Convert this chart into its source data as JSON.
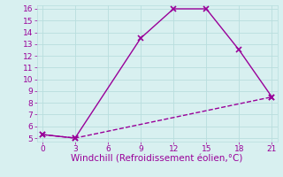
{
  "line1_x": [
    0,
    3,
    9,
    12,
    15,
    18,
    21
  ],
  "line1_y": [
    5.3,
    5.0,
    13.5,
    16.0,
    16.0,
    12.5,
    8.5
  ],
  "line2_x": [
    0,
    3,
    21
  ],
  "line2_y": [
    5.3,
    5.0,
    8.5
  ],
  "line_color": "#990099",
  "line1_style": "-",
  "line2_style": "--",
  "marker": "x",
  "marker_size": 4,
  "marker_lw": 1.2,
  "xlabel": "Windchill (Refroidissement éolien,°C)",
  "xlabel_color": "#990099",
  "bg_color": "#d8f0f0",
  "grid_color": "#b8dede",
  "xlim": [
    -0.5,
    21.5
  ],
  "ylim": [
    4.7,
    16.3
  ],
  "xticks": [
    0,
    3,
    6,
    9,
    12,
    15,
    18,
    21
  ],
  "yticks": [
    5,
    6,
    7,
    8,
    9,
    10,
    11,
    12,
    13,
    14,
    15,
    16
  ],
  "tick_color": "#990099",
  "tick_fontsize": 6.5,
  "xlabel_fontsize": 7.5,
  "linewidth": 1.0
}
